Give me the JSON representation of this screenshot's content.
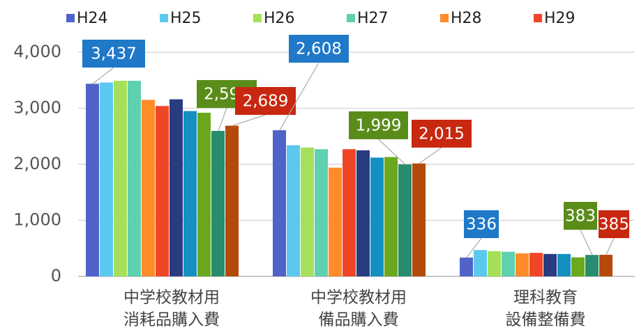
{
  "chart_data": {
    "type": "bar",
    "categories": [
      [
        "中学校教材用",
        "消耗品購入費"
      ],
      [
        "中学校教材用",
        "備品購入費"
      ],
      [
        "理科教育",
        "設備整備費"
      ]
    ],
    "series": [
      {
        "name": "H24",
        "color": "#4f63c8",
        "label_color": "#1f78c8",
        "values": [
          3437,
          2608,
          336
        ],
        "value_labels": [
          "3,437",
          "2,608",
          "336"
        ]
      },
      {
        "name": "H25",
        "color": "#5bc8f0",
        "values": [
          3460,
          2340,
          470
        ]
      },
      {
        "name": "H26",
        "color": "#a6e05a",
        "values": [
          3490,
          2300,
          450
        ]
      },
      {
        "name": "H27",
        "color": "#5fd0b0",
        "values": [
          3490,
          2270,
          440
        ]
      },
      {
        "name": "H28",
        "color": "#ff8c28",
        "values": [
          3150,
          1940,
          410
        ]
      },
      {
        "name": "H29",
        "color": "#f04628",
        "values": [
          3040,
          2270,
          420
        ]
      },
      {
        "color": "#283c82",
        "values": [
          3160,
          2250,
          400
        ]
      },
      {
        "color": "#1490c0",
        "values": [
          2950,
          2120,
          400
        ]
      },
      {
        "color": "#6aa81e",
        "values": [
          2920,
          2130,
          340
        ]
      },
      {
        "color": "#288c6e",
        "label_color": "#5a8c1a",
        "values": [
          2596,
          1999,
          383
        ],
        "value_labels": [
          "2,596",
          "1,999",
          "383"
        ]
      },
      {
        "color": "#b44a0a",
        "label_color": "#c8280f",
        "values": [
          2689,
          2015,
          385
        ],
        "value_labels": [
          "2,689",
          "2,015",
          "385"
        ]
      }
    ],
    "ylim": [
      0,
      4000
    ],
    "yticks": [
      0,
      {
        "value": 1000,
        "label": "1,000"
      },
      {
        "value": 2000,
        "label": "2,000"
      },
      {
        "value": 3000,
        "label": "3,000"
      },
      {
        "value": 4000,
        "label": "4,000"
      }
    ],
    "grid": true
  }
}
